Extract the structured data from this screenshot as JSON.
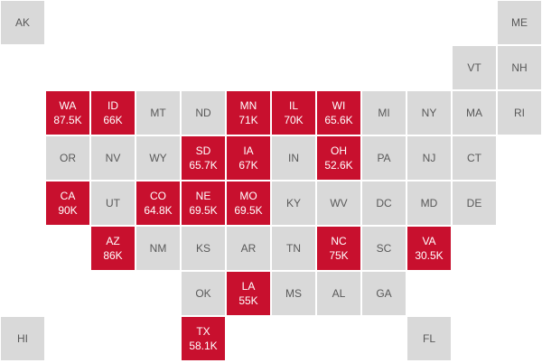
{
  "colors": {
    "highlight": "#c8102e",
    "default": "#d9d9d9",
    "default_text": "#595959",
    "highlight_text": "#ffffff"
  },
  "tiles": [
    {
      "abbr": "AK",
      "row": 0,
      "col": 0
    },
    {
      "abbr": "ME",
      "row": 0,
      "col": 11
    },
    {
      "abbr": "VT",
      "row": 1,
      "col": 10
    },
    {
      "abbr": "NH",
      "row": 1,
      "col": 11
    },
    {
      "abbr": "WA",
      "row": 2,
      "col": 1,
      "value": "87.5K"
    },
    {
      "abbr": "ID",
      "row": 2,
      "col": 2,
      "value": "66K"
    },
    {
      "abbr": "MT",
      "row": 2,
      "col": 3
    },
    {
      "abbr": "ND",
      "row": 2,
      "col": 4
    },
    {
      "abbr": "MN",
      "row": 2,
      "col": 5,
      "value": "71K"
    },
    {
      "abbr": "IL",
      "row": 2,
      "col": 6,
      "value": "70K"
    },
    {
      "abbr": "WI",
      "row": 2,
      "col": 7,
      "value": "65.6K"
    },
    {
      "abbr": "MI",
      "row": 2,
      "col": 8
    },
    {
      "abbr": "NY",
      "row": 2,
      "col": 9
    },
    {
      "abbr": "MA",
      "row": 2,
      "col": 10
    },
    {
      "abbr": "RI",
      "row": 2,
      "col": 11
    },
    {
      "abbr": "OR",
      "row": 3,
      "col": 1
    },
    {
      "abbr": "NV",
      "row": 3,
      "col": 2
    },
    {
      "abbr": "WY",
      "row": 3,
      "col": 3
    },
    {
      "abbr": "SD",
      "row": 3,
      "col": 4,
      "value": "65.7K"
    },
    {
      "abbr": "IA",
      "row": 3,
      "col": 5,
      "value": "67K"
    },
    {
      "abbr": "IN",
      "row": 3,
      "col": 6
    },
    {
      "abbr": "OH",
      "row": 3,
      "col": 7,
      "value": "52.6K"
    },
    {
      "abbr": "PA",
      "row": 3,
      "col": 8
    },
    {
      "abbr": "NJ",
      "row": 3,
      "col": 9
    },
    {
      "abbr": "CT",
      "row": 3,
      "col": 10
    },
    {
      "abbr": "CA",
      "row": 4,
      "col": 1,
      "value": "90K"
    },
    {
      "abbr": "UT",
      "row": 4,
      "col": 2
    },
    {
      "abbr": "CO",
      "row": 4,
      "col": 3,
      "value": "64.8K"
    },
    {
      "abbr": "NE",
      "row": 4,
      "col": 4,
      "value": "69.5K"
    },
    {
      "abbr": "MO",
      "row": 4,
      "col": 5,
      "value": "69.5K"
    },
    {
      "abbr": "KY",
      "row": 4,
      "col": 6
    },
    {
      "abbr": "WV",
      "row": 4,
      "col": 7
    },
    {
      "abbr": "DC",
      "row": 4,
      "col": 8
    },
    {
      "abbr": "MD",
      "row": 4,
      "col": 9
    },
    {
      "abbr": "DE",
      "row": 4,
      "col": 10
    },
    {
      "abbr": "AZ",
      "row": 5,
      "col": 2,
      "value": "86K"
    },
    {
      "abbr": "NM",
      "row": 5,
      "col": 3
    },
    {
      "abbr": "KS",
      "row": 5,
      "col": 4
    },
    {
      "abbr": "AR",
      "row": 5,
      "col": 5
    },
    {
      "abbr": "TN",
      "row": 5,
      "col": 6
    },
    {
      "abbr": "NC",
      "row": 5,
      "col": 7,
      "value": "75K"
    },
    {
      "abbr": "SC",
      "row": 5,
      "col": 8
    },
    {
      "abbr": "VA",
      "row": 5,
      "col": 9,
      "value": "30.5K"
    },
    {
      "abbr": "OK",
      "row": 6,
      "col": 4
    },
    {
      "abbr": "LA",
      "row": 6,
      "col": 5,
      "value": "55K"
    },
    {
      "abbr": "MS",
      "row": 6,
      "col": 6
    },
    {
      "abbr": "AL",
      "row": 6,
      "col": 7
    },
    {
      "abbr": "GA",
      "row": 6,
      "col": 8
    },
    {
      "abbr": "HI",
      "row": 7,
      "col": 0
    },
    {
      "abbr": "TX",
      "row": 7,
      "col": 4,
      "value": "58.1K"
    },
    {
      "abbr": "FL",
      "row": 7,
      "col": 9
    }
  ]
}
